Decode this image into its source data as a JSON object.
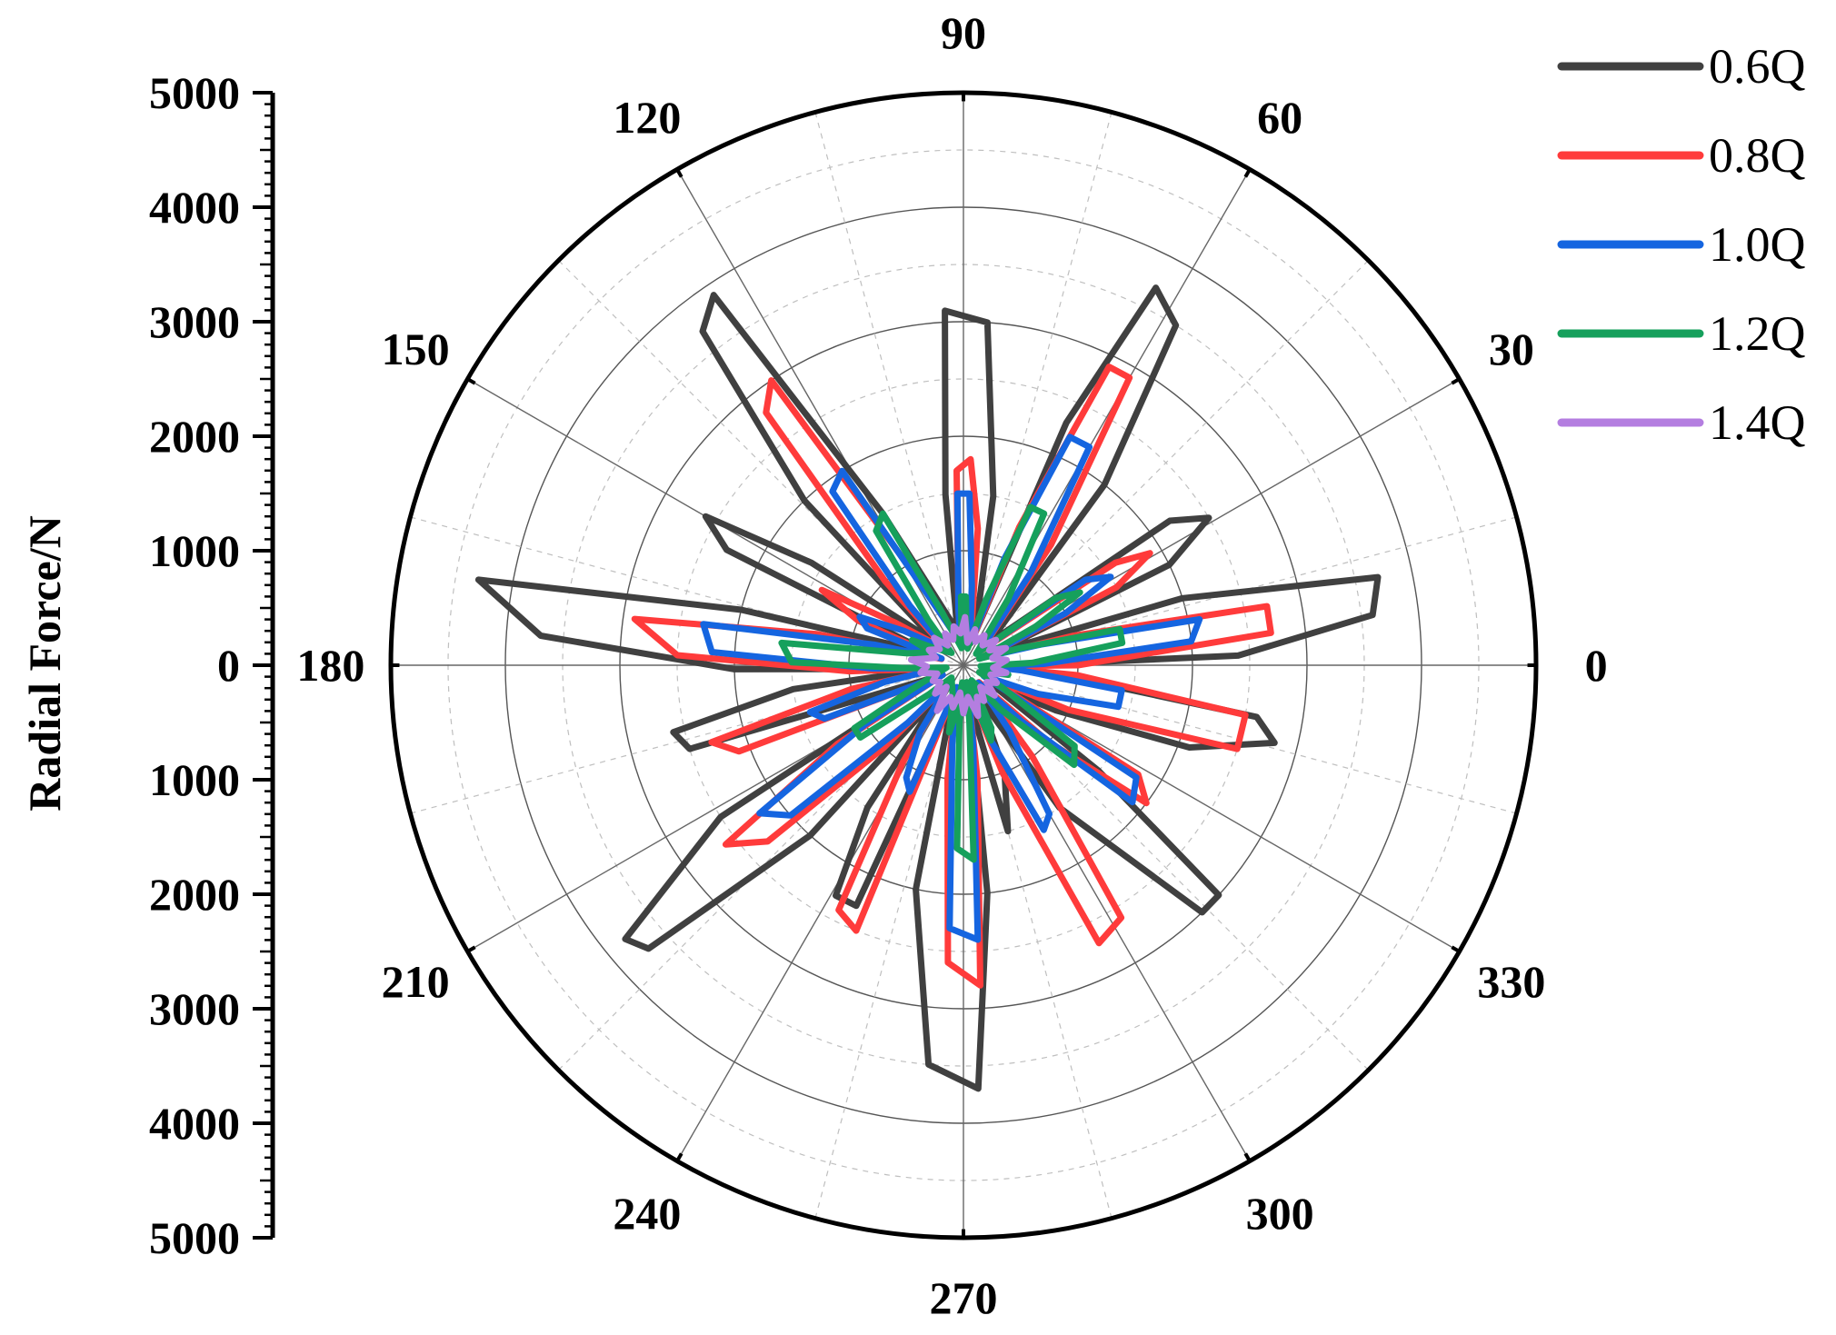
{
  "chart_data": {
    "type": "polar-line",
    "ylabel": "Radial Force/N",
    "rlim": [
      0,
      5000
    ],
    "r_ticks": [
      0,
      1000,
      2000,
      3000,
      4000,
      5000
    ],
    "r_tick_labels": [
      "5000",
      "4000",
      "3000",
      "2000",
      "1000",
      "0",
      "1000",
      "2000",
      "3000",
      "4000",
      "5000"
    ],
    "angle_ticks": [
      0,
      30,
      60,
      90,
      120,
      150,
      180,
      210,
      240,
      270,
      300,
      330
    ],
    "angle_tick_labels": [
      "0",
      "30",
      "60",
      "90",
      "120",
      "150",
      "180",
      "210",
      "240",
      "270",
      "300",
      "330"
    ],
    "grid": true,
    "legend_position": "top-right",
    "series": [
      {
        "name": "0.6Q",
        "color": "#404040",
        "points": [
          [
            -2,
            300
          ],
          [
            2,
            2400
          ],
          [
            7,
            3600
          ],
          [
            12,
            3700
          ],
          [
            17,
            2000
          ],
          [
            22,
            300
          ],
          [
            26,
            2000
          ],
          [
            31,
            2500
          ],
          [
            35,
            2200
          ],
          [
            41,
            300
          ],
          [
            52,
            2000
          ],
          [
            58,
            3500
          ],
          [
            63,
            3700
          ],
          [
            67,
            2300
          ],
          [
            70,
            300
          ],
          [
            80,
            1500
          ],
          [
            86,
            3000
          ],
          [
            93,
            3100
          ],
          [
            96,
            1500
          ],
          [
            100,
            300
          ],
          [
            118,
            1500
          ],
          [
            124,
            3900
          ],
          [
            128,
            3700
          ],
          [
            134,
            2000
          ],
          [
            140,
            300
          ],
          [
            146,
            1600
          ],
          [
            150,
            2600
          ],
          [
            154,
            2300
          ],
          [
            160,
            300
          ],
          [
            166,
            2000
          ],
          [
            170,
            4300
          ],
          [
            176,
            3700
          ],
          [
            181,
            2000
          ],
          [
            186,
            300
          ],
          [
            188,
            1500
          ],
          [
            193,
            2600
          ],
          [
            197,
            2500
          ],
          [
            202,
            300
          ],
          [
            212,
            2500
          ],
          [
            219,
            3800
          ],
          [
            222,
            3700
          ],
          [
            228,
            2000
          ],
          [
            231,
            300
          ],
          [
            236,
            1500
          ],
          [
            241,
            2300
          ],
          [
            246,
            2300
          ],
          [
            252,
            300
          ],
          [
            258,
            2000
          ],
          [
            265,
            3500
          ],
          [
            272,
            3700
          ],
          [
            276,
            2000
          ],
          [
            279,
            300
          ],
          [
            285,
            1500
          ],
          [
            291,
            1000
          ],
          [
            296,
            300
          ],
          [
            304,
            1500
          ],
          [
            314,
            3000
          ],
          [
            318,
            3000
          ],
          [
            322,
            1500
          ],
          [
            326,
            300
          ],
          [
            334,
            900
          ],
          [
            340,
            2100
          ],
          [
            346,
            2800
          ],
          [
            350,
            2600
          ],
          [
            354,
            900
          ],
          [
            358,
            300
          ]
        ]
      },
      {
        "name": "0.8Q",
        "color": "#ff3b3b",
        "points": [
          [
            -3,
            200
          ],
          [
            0,
            1000
          ],
          [
            6,
            2700
          ],
          [
            11,
            2700
          ],
          [
            15,
            1000
          ],
          [
            21,
            200
          ],
          [
            27,
            1500
          ],
          [
            31,
            1900
          ],
          [
            34,
            1600
          ],
          [
            40,
            200
          ],
          [
            54,
            1300
          ],
          [
            60,
            2900
          ],
          [
            64,
            2900
          ],
          [
            68,
            1300
          ],
          [
            72,
            200
          ],
          [
            84,
            1200
          ],
          [
            88,
            1800
          ],
          [
            92,
            1700
          ],
          [
            95,
            500
          ],
          [
            98,
            200
          ],
          [
            119,
            1000
          ],
          [
            124,
            3000
          ],
          [
            128,
            2800
          ],
          [
            133,
            1000
          ],
          [
            138,
            200
          ],
          [
            148,
            700
          ],
          [
            152,
            1400
          ],
          [
            157,
            1000
          ],
          [
            164,
            200
          ],
          [
            168,
            1300
          ],
          [
            172,
            2900
          ],
          [
            178,
            2500
          ],
          [
            183,
            1000
          ],
          [
            188,
            200
          ],
          [
            192,
            1000
          ],
          [
            197,
            2300
          ],
          [
            201,
            2100
          ],
          [
            205,
            200
          ],
          [
            212,
            1300
          ],
          [
            217,
            2600
          ],
          [
            222,
            2300
          ],
          [
            226,
            1000
          ],
          [
            231,
            200
          ],
          [
            238,
            1000
          ],
          [
            243,
            2400
          ],
          [
            248,
            2500
          ],
          [
            253,
            200
          ],
          [
            262,
            1000
          ],
          [
            267,
            2600
          ],
          [
            273,
            2800
          ],
          [
            277,
            1000
          ],
          [
            281,
            200
          ],
          [
            290,
            1000
          ],
          [
            296,
            2700
          ],
          [
            302,
            2600
          ],
          [
            307,
            1000
          ],
          [
            312,
            200
          ],
          [
            318,
            1000
          ],
          [
            323,
            2000
          ],
          [
            328,
            1800
          ],
          [
            333,
            200
          ],
          [
            337,
            1000
          ],
          [
            343,
            2500
          ],
          [
            350,
            2500
          ],
          [
            355,
            1000
          ],
          [
            358,
            200
          ]
        ]
      },
      {
        "name": "1.0Q",
        "color": "#1565e0",
        "points": [
          [
            -3,
            200
          ],
          [
            1,
            700
          ],
          [
            6,
            2000
          ],
          [
            11,
            2100
          ],
          [
            15,
            700
          ],
          [
            21,
            200
          ],
          [
            27,
            1000
          ],
          [
            31,
            1500
          ],
          [
            35,
            1300
          ],
          [
            41,
            200
          ],
          [
            54,
            1000
          ],
          [
            60,
            2200
          ],
          [
            65,
            2200
          ],
          [
            69,
            1000
          ],
          [
            73,
            200
          ],
          [
            84,
            700
          ],
          [
            88,
            1500
          ],
          [
            92,
            1500
          ],
          [
            95,
            500
          ],
          [
            98,
            200
          ],
          [
            117,
            700
          ],
          [
            122,
            2000
          ],
          [
            127,
            1900
          ],
          [
            132,
            700
          ],
          [
            137,
            200
          ],
          [
            150,
            600
          ],
          [
            155,
            1000
          ],
          [
            159,
            900
          ],
          [
            163,
            200
          ],
          [
            167,
            800
          ],
          [
            171,
            2300
          ],
          [
            177,
            2200
          ],
          [
            182,
            800
          ],
          [
            187,
            200
          ],
          [
            192,
            700
          ],
          [
            197,
            1400
          ],
          [
            201,
            1300
          ],
          [
            205,
            200
          ],
          [
            211,
            1000
          ],
          [
            216,
            2200
          ],
          [
            221,
            2000
          ],
          [
            226,
            700
          ],
          [
            231,
            200
          ],
          [
            237,
            700
          ],
          [
            243,
            1100
          ],
          [
            247,
            1200
          ],
          [
            253,
            200
          ],
          [
            262,
            700
          ],
          [
            267,
            2300
          ],
          [
            273,
            2400
          ],
          [
            277,
            700
          ],
          [
            281,
            200
          ],
          [
            290,
            700
          ],
          [
            296,
            1600
          ],
          [
            300,
            1500
          ],
          [
            305,
            700
          ],
          [
            310,
            200
          ],
          [
            316,
            700
          ],
          [
            321,
            1900
          ],
          [
            327,
            1800
          ],
          [
            332,
            200
          ],
          [
            339,
            700
          ],
          [
            345,
            1400
          ],
          [
            351,
            1400
          ],
          [
            355,
            500
          ],
          [
            358,
            200
          ]
        ]
      },
      {
        "name": "1.2Q",
        "color": "#16a05c",
        "points": [
          [
            -3,
            150
          ],
          [
            2,
            600
          ],
          [
            8,
            1400
          ],
          [
            13,
            1400
          ],
          [
            17,
            500
          ],
          [
            22,
            150
          ],
          [
            28,
            700
          ],
          [
            32,
            1200
          ],
          [
            36,
            1000
          ],
          [
            42,
            150
          ],
          [
            56,
            700
          ],
          [
            62,
            1500
          ],
          [
            67,
            1500
          ],
          [
            71,
            600
          ],
          [
            76,
            150
          ],
          [
            85,
            300
          ],
          [
            88,
            600
          ],
          [
            92,
            600
          ],
          [
            96,
            150
          ],
          [
            112,
            500
          ],
          [
            118,
            1500
          ],
          [
            123,
            1400
          ],
          [
            128,
            500
          ],
          [
            134,
            150
          ],
          [
            150,
            300
          ],
          [
            154,
            500
          ],
          [
            158,
            300
          ],
          [
            168,
            500
          ],
          [
            173,
            1600
          ],
          [
            179,
            1500
          ],
          [
            183,
            500
          ],
          [
            188,
            150
          ],
          [
            205,
            500
          ],
          [
            210,
            1100
          ],
          [
            215,
            1100
          ],
          [
            220,
            400
          ],
          [
            226,
            150
          ],
          [
            252,
            300
          ],
          [
            258,
            600
          ],
          [
            262,
            400
          ],
          [
            266,
            150
          ],
          [
            266,
            500
          ],
          [
            268,
            1600
          ],
          [
            273,
            1700
          ],
          [
            276,
            500
          ],
          [
            280,
            150
          ],
          [
            286,
            300
          ],
          [
            290,
            700
          ],
          [
            294,
            600
          ],
          [
            298,
            150
          ],
          [
            310,
            500
          ],
          [
            318,
            1300
          ],
          [
            324,
            1200
          ],
          [
            330,
            400
          ],
          [
            336,
            150
          ],
          [
            343,
            200
          ],
          [
            348,
            400
          ],
          [
            352,
            300
          ],
          [
            357,
            150
          ]
        ]
      },
      {
        "name": "1.4Q",
        "color": "#b47ee0",
        "points": [
          [
            0,
            300
          ],
          [
            7,
            380
          ],
          [
            14,
            260
          ],
          [
            22,
            400
          ],
          [
            30,
            260
          ],
          [
            38,
            360
          ],
          [
            46,
            240
          ],
          [
            55,
            320
          ],
          [
            63,
            230
          ],
          [
            72,
            330
          ],
          [
            80,
            200
          ],
          [
            88,
            420
          ],
          [
            95,
            280
          ],
          [
            104,
            350
          ],
          [
            112,
            240
          ],
          [
            120,
            320
          ],
          [
            128,
            220
          ],
          [
            137,
            350
          ],
          [
            146,
            250
          ],
          [
            156,
            330
          ],
          [
            165,
            250
          ],
          [
            174,
            460
          ],
          [
            182,
            320
          ],
          [
            190,
            380
          ],
          [
            198,
            240
          ],
          [
            207,
            300
          ],
          [
            216,
            250
          ],
          [
            225,
            350
          ],
          [
            232,
            240
          ],
          [
            240,
            460
          ],
          [
            248,
            300
          ],
          [
            256,
            380
          ],
          [
            263,
            240
          ],
          [
            270,
            420
          ],
          [
            278,
            280
          ],
          [
            286,
            460
          ],
          [
            293,
            300
          ],
          [
            300,
            360
          ],
          [
            308,
            240
          ],
          [
            316,
            380
          ],
          [
            324,
            250
          ],
          [
            332,
            330
          ],
          [
            341,
            250
          ],
          [
            350,
            380
          ],
          [
            355,
            260
          ],
          [
            360,
            300
          ]
        ]
      }
    ]
  }
}
